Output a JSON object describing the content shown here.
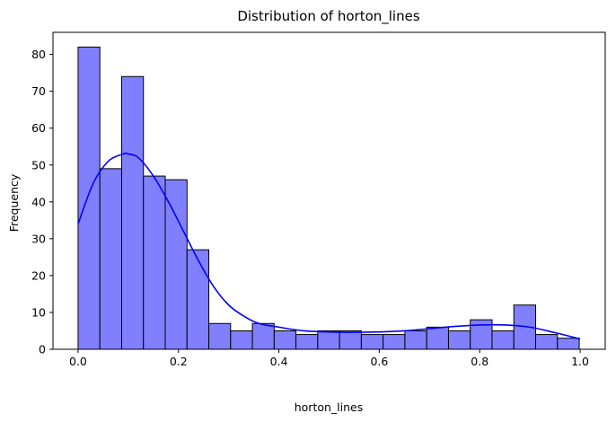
{
  "chart_data": {
    "type": "bar",
    "title": "Distribution of horton_lines",
    "xlabel": "horton_lines",
    "ylabel": "Frequency",
    "xlim": [
      -0.05,
      1.05
    ],
    "ylim": [
      0,
      86
    ],
    "bin_start": 0,
    "bin_width": 0.0434,
    "values": [
      82,
      49,
      74,
      47,
      46,
      27,
      7,
      5,
      7,
      5,
      4,
      5,
      5,
      4,
      4,
      5,
      6,
      5,
      8,
      5,
      12,
      4,
      3
    ],
    "kde": {
      "x": [
        0.0,
        0.03,
        0.06,
        0.09,
        0.1,
        0.12,
        0.15,
        0.18,
        0.21,
        0.24,
        0.27,
        0.3,
        0.33,
        0.36,
        0.4,
        0.45,
        0.5,
        0.55,
        0.6,
        0.65,
        0.7,
        0.75,
        0.8,
        0.85,
        0.9,
        0.95,
        1.0
      ],
      "y": [
        34,
        45,
        51,
        53,
        53,
        52,
        47,
        40,
        32,
        24,
        17,
        12,
        9,
        7,
        6,
        5,
        4.7,
        4.6,
        4.7,
        5,
        5.6,
        6.2,
        6.6,
        6.6,
        6,
        4.5,
        2.8
      ]
    },
    "xticks": [
      0.0,
      0.2,
      0.4,
      0.6,
      0.8,
      1.0
    ],
    "xtick_labels": [
      "0.0",
      "0.2",
      "0.4",
      "0.6",
      "0.8",
      "1.0"
    ],
    "yticks": [
      0,
      10,
      20,
      30,
      40,
      50,
      60,
      70,
      80
    ],
    "ytick_labels": [
      "0",
      "10",
      "20",
      "30",
      "40",
      "50",
      "60",
      "70",
      "80"
    ],
    "grid": false,
    "bar_color": "#8080ff",
    "bar_edge_color": "#000000",
    "kde_color": "#0000ff"
  }
}
